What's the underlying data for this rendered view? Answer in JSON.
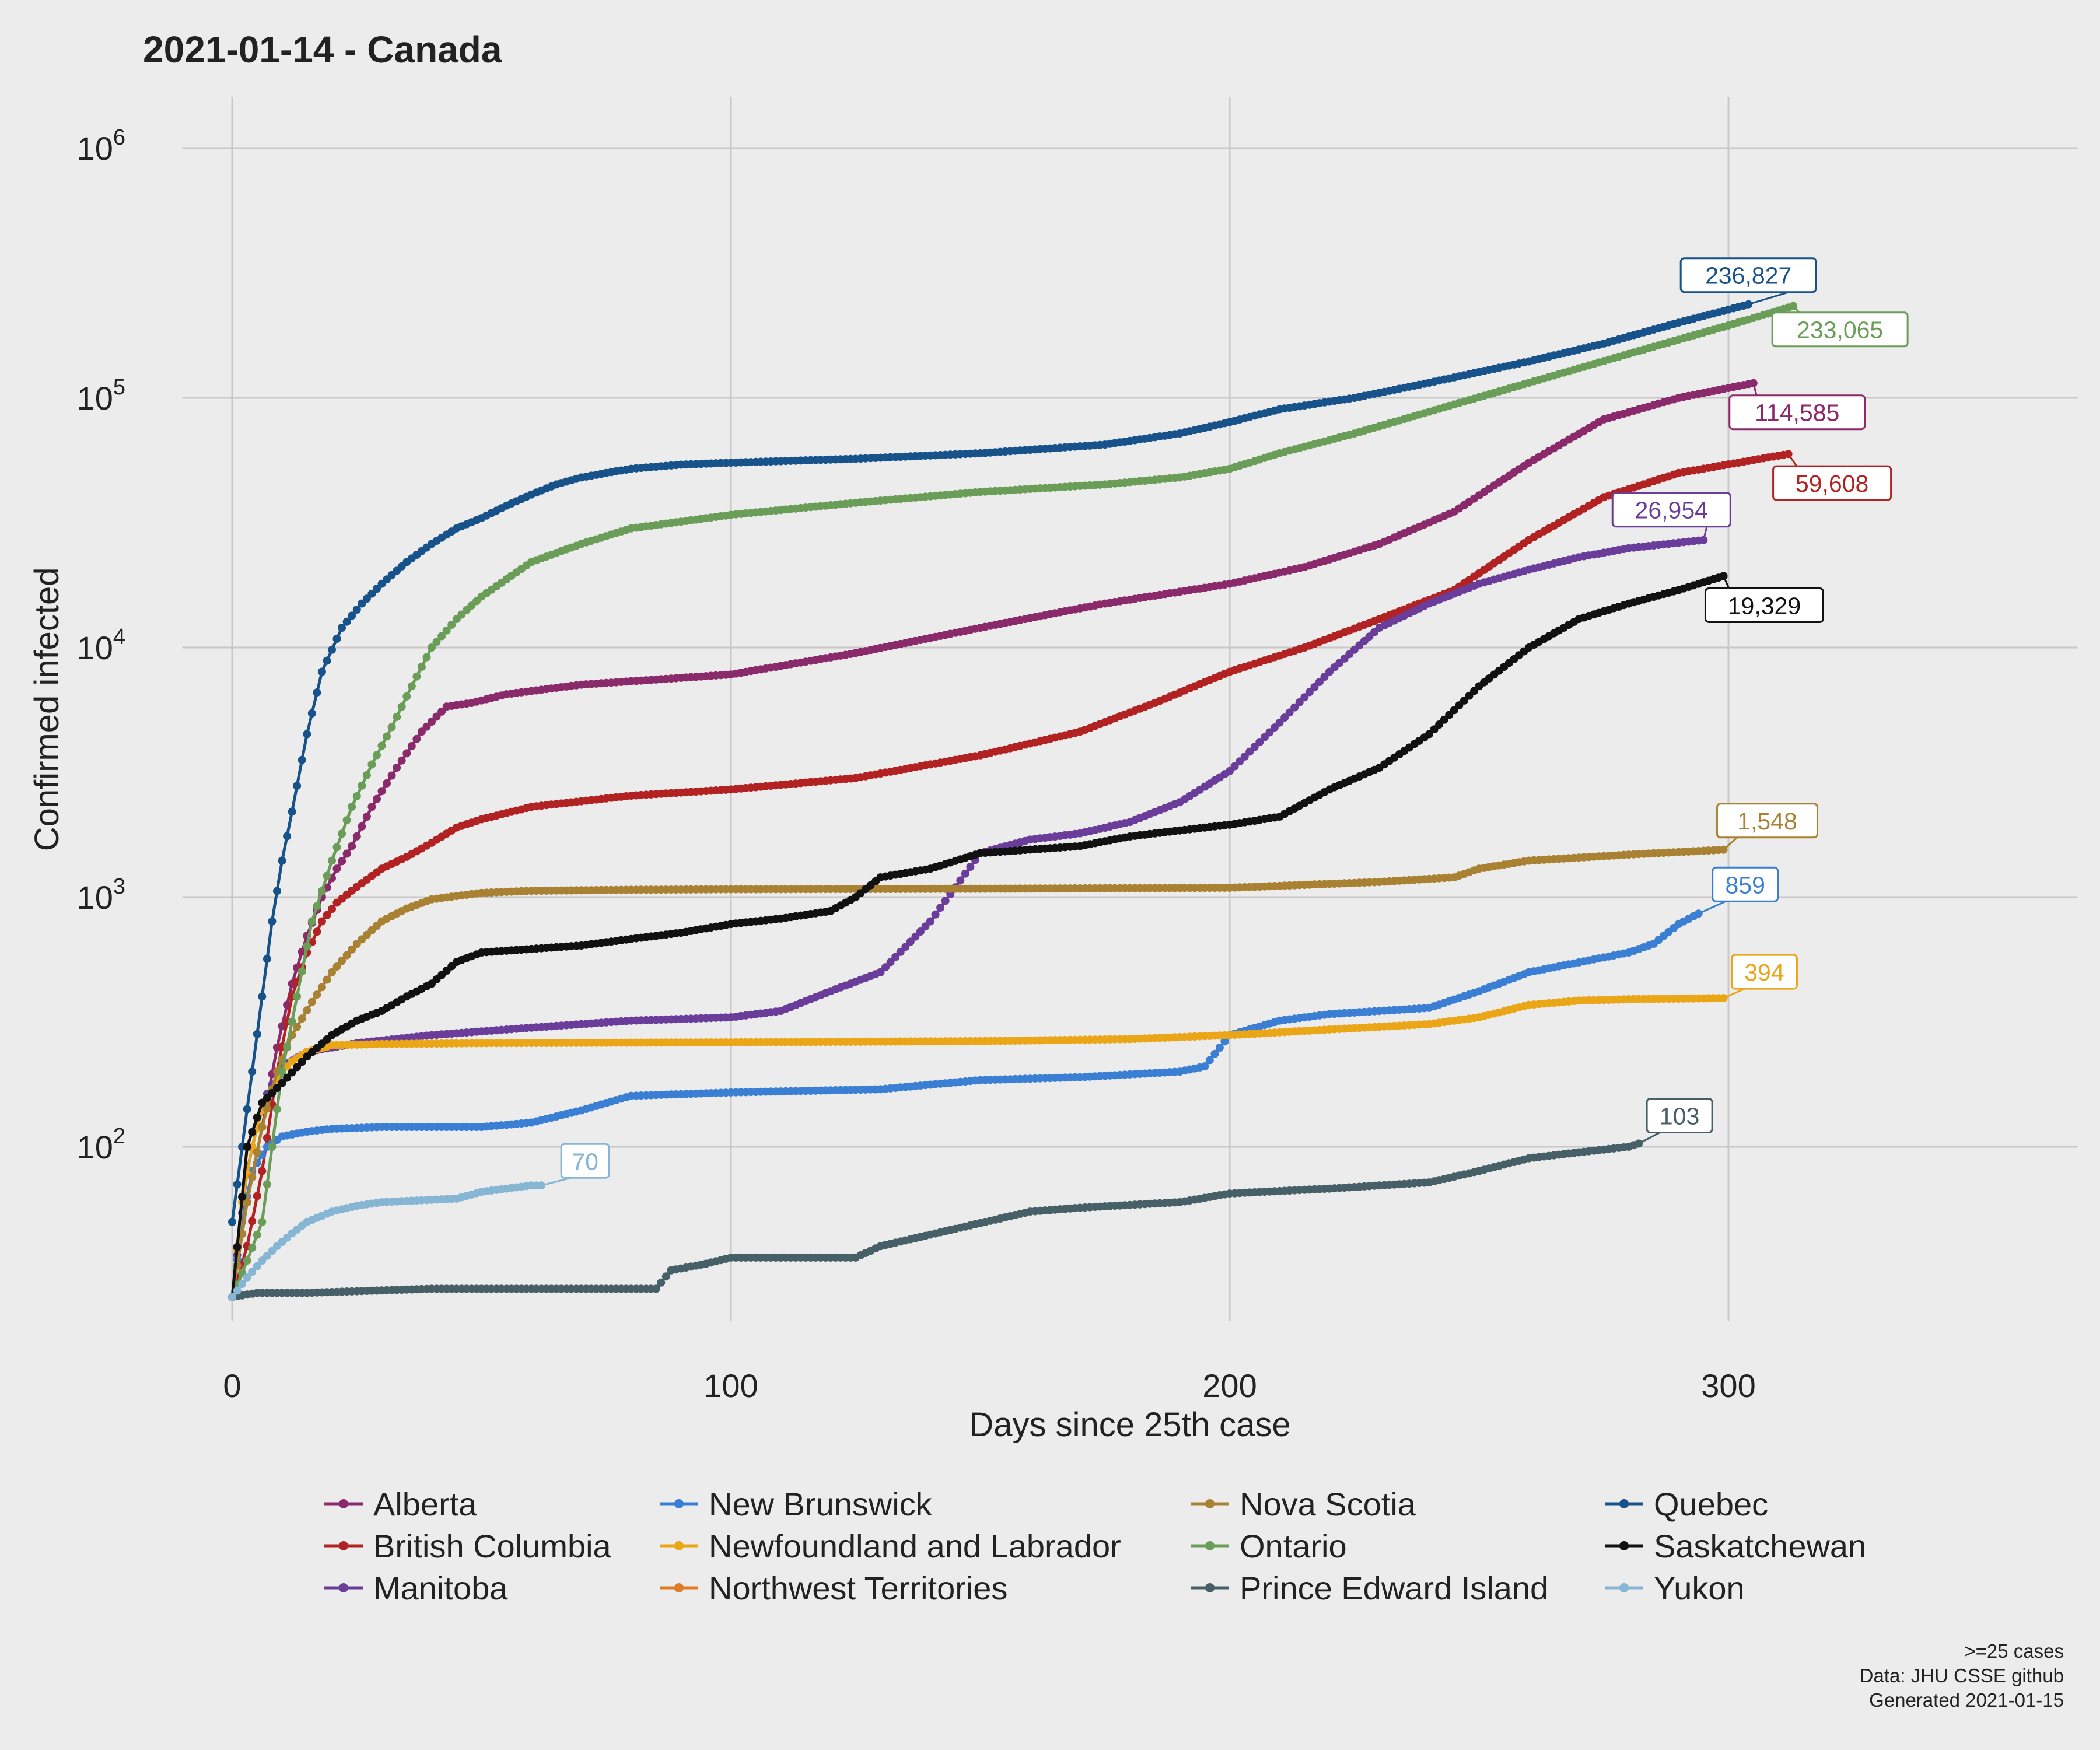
{
  "title": "2021-01-14  - Canada",
  "caption": [
    ">=25 cases",
    "Data: JHU CSSE github",
    "Generated 2021-01-15"
  ],
  "chart_data": {
    "type": "line",
    "title": "2021-01-14  - Canada",
    "xlabel": "Days since 25th case",
    "ylabel": "Confirmed infected",
    "y_scale": "log10",
    "xlim": [
      -10,
      370
    ],
    "ylim": [
      20,
      1600000
    ],
    "x_ticks": [
      0,
      100,
      200,
      300
    ],
    "x_tick_labels": [
      "0",
      "100",
      "200",
      "300"
    ],
    "y_ticks": [
      100,
      1000,
      10000,
      100000,
      1000000
    ],
    "y_tick_labels": [
      {
        "base": "10",
        "exp": "2"
      },
      {
        "base": "10",
        "exp": "3"
      },
      {
        "base": "10",
        "exp": "4"
      },
      {
        "base": "10",
        "exp": "5"
      },
      {
        "base": "10",
        "exp": "6"
      }
    ],
    "grid": true,
    "legend_position": "bottom",
    "series": [
      {
        "name": "Alberta",
        "color": "#8b2a6b",
        "end_label": "114,585",
        "x": [
          0,
          3,
          6,
          9,
          12,
          15,
          18,
          21,
          24,
          28,
          33,
          38,
          43,
          48,
          55,
          70,
          100,
          125,
          150,
          175,
          200,
          215,
          230,
          245,
          260,
          275,
          290,
          305
        ],
        "y": [
          25,
          60,
          120,
          250,
          450,
          700,
          1000,
          1300,
          1600,
          2300,
          3300,
          4600,
          5800,
          6000,
          6500,
          7100,
          7800,
          9500,
          12000,
          15000,
          18000,
          21000,
          26000,
          35000,
          55000,
          82000,
          100000,
          114585
        ]
      },
      {
        "name": "British Columbia",
        "color": "#b22222",
        "end_label": "59,608",
        "x": [
          0,
          3,
          6,
          9,
          12,
          15,
          18,
          21,
          25,
          30,
          35,
          40,
          45,
          50,
          60,
          80,
          100,
          125,
          150,
          170,
          185,
          200,
          215,
          230,
          245,
          260,
          275,
          290,
          312
        ],
        "y": [
          25,
          40,
          80,
          200,
          400,
          600,
          800,
          950,
          1100,
          1300,
          1450,
          1650,
          1900,
          2050,
          2300,
          2550,
          2700,
          3000,
          3700,
          4600,
          6000,
          8000,
          10000,
          13000,
          17000,
          27000,
          40000,
          50000,
          59608
        ]
      },
      {
        "name": "Manitoba",
        "color": "#6a3d9a",
        "end_label": "26,954",
        "x": [
          0,
          3,
          6,
          10,
          15,
          25,
          40,
          60,
          80,
          100,
          110,
          120,
          130,
          140,
          150,
          160,
          170,
          180,
          190,
          200,
          210,
          220,
          230,
          240,
          250,
          260,
          270,
          280,
          295
        ],
        "y": [
          25,
          80,
          150,
          210,
          240,
          260,
          280,
          300,
          320,
          330,
          350,
          420,
          500,
          800,
          1500,
          1700,
          1800,
          2000,
          2400,
          3200,
          5000,
          8000,
          12000,
          15000,
          18000,
          20500,
          23000,
          25000,
          26954
        ]
      },
      {
        "name": "New Brunswick",
        "color": "#3a7fd4",
        "end_label": "859",
        "x": [
          0,
          2,
          4,
          7,
          10,
          15,
          20,
          30,
          50,
          60,
          70,
          80,
          100,
          130,
          150,
          170,
          190,
          195,
          200,
          210,
          220,
          240,
          250,
          260,
          280,
          285,
          290,
          294
        ],
        "y": [
          25,
          50,
          80,
          100,
          110,
          115,
          118,
          120,
          120,
          125,
          140,
          160,
          165,
          170,
          185,
          190,
          200,
          210,
          280,
          320,
          340,
          360,
          420,
          500,
          600,
          650,
          780,
          859
        ]
      },
      {
        "name": "Newfoundland and Labrador",
        "color": "#eaa616",
        "end_label": "394",
        "x": [
          0,
          2,
          4,
          6,
          8,
          10,
          12,
          15,
          20,
          30,
          50,
          100,
          150,
          180,
          200,
          220,
          240,
          250,
          260,
          270,
          280,
          299
        ],
        "y": [
          25,
          60,
          100,
          140,
          170,
          200,
          220,
          240,
          255,
          258,
          260,
          262,
          265,
          270,
          280,
          295,
          310,
          330,
          370,
          385,
          390,
          394
        ]
      },
      {
        "name": "Northwest Territories",
        "color": "#e07b2a",
        "end_label": null,
        "x": [],
        "y": []
      },
      {
        "name": "Nova Scotia",
        "color": "#a88232",
        "end_label": "1,548",
        "x": [
          0,
          3,
          6,
          9,
          12,
          16,
          20,
          25,
          30,
          35,
          40,
          50,
          60,
          80,
          100,
          150,
          200,
          230,
          245,
          250,
          260,
          280,
          299
        ],
        "y": [
          25,
          60,
          120,
          200,
          280,
          380,
          500,
          650,
          800,
          900,
          980,
          1040,
          1060,
          1070,
          1075,
          1080,
          1090,
          1150,
          1200,
          1300,
          1400,
          1480,
          1548
        ]
      },
      {
        "name": "Ontario",
        "color": "#6a9e58",
        "end_label": "233,065",
        "x": [
          0,
          3,
          6,
          8,
          10,
          13,
          16,
          20,
          24,
          28,
          32,
          36,
          40,
          45,
          50,
          60,
          70,
          80,
          100,
          125,
          150,
          175,
          190,
          200,
          210,
          225,
          240,
          260,
          280,
          300,
          313
        ],
        "y": [
          25,
          35,
          50,
          100,
          200,
          400,
          800,
          1400,
          2300,
          3400,
          4800,
          7000,
          10000,
          13000,
          16000,
          22000,
          26000,
          30000,
          34000,
          38000,
          42000,
          45000,
          48000,
          52000,
          60000,
          72000,
          88000,
          115000,
          150000,
          195000,
          233065
        ]
      },
      {
        "name": "Prince Edward Island",
        "color": "#475f66",
        "end_label": "103",
        "x": [
          0,
          5,
          15,
          40,
          85,
          88,
          95,
          100,
          125,
          130,
          160,
          170,
          190,
          200,
          220,
          230,
          240,
          250,
          260,
          270,
          280,
          282
        ],
        "y": [
          25,
          26,
          26,
          27,
          27,
          32,
          34,
          36,
          36,
          40,
          55,
          57,
          60,
          65,
          68,
          70,
          72,
          80,
          90,
          95,
          100,
          103
        ]
      },
      {
        "name": "Quebec",
        "color": "#17538a",
        "end_label": "236,827",
        "x": [
          0,
          2,
          4,
          6,
          8,
          10,
          12,
          15,
          18,
          22,
          26,
          30,
          35,
          40,
          45,
          50,
          55,
          60,
          65,
          70,
          75,
          80,
          90,
          100,
          125,
          150,
          175,
          190,
          200,
          210,
          225,
          240,
          260,
          275,
          290,
          304
        ],
        "y": [
          50,
          100,
          200,
          400,
          800,
          1400,
          2200,
          4500,
          8000,
          12000,
          15000,
          18000,
          22000,
          26000,
          30000,
          33000,
          37000,
          41000,
          45000,
          48000,
          50000,
          52000,
          54000,
          55000,
          57000,
          60000,
          65000,
          72000,
          80000,
          90000,
          100000,
          115000,
          140000,
          165000,
          200000,
          236827
        ]
      },
      {
        "name": "Saskatchewan",
        "color": "#111111",
        "end_label": "19,329",
        "x": [
          0,
          3,
          6,
          10,
          15,
          20,
          25,
          30,
          35,
          40,
          45,
          50,
          60,
          70,
          80,
          90,
          100,
          110,
          120,
          125,
          130,
          140,
          150,
          160,
          170,
          180,
          190,
          200,
          210,
          220,
          230,
          240,
          250,
          260,
          270,
          280,
          290,
          299
        ],
        "y": [
          25,
          100,
          150,
          180,
          230,
          280,
          320,
          350,
          400,
          450,
          550,
          600,
          620,
          640,
          680,
          720,
          780,
          820,
          880,
          1000,
          1200,
          1300,
          1500,
          1550,
          1600,
          1750,
          1850,
          1950,
          2100,
          2700,
          3300,
          4500,
          7000,
          10000,
          13000,
          15000,
          17000,
          19329
        ]
      },
      {
        "name": "Yukon",
        "color": "#87b5d4",
        "end_label": "70",
        "x": [
          0,
          3,
          6,
          9,
          12,
          15,
          20,
          25,
          30,
          45,
          50,
          55,
          60,
          62
        ],
        "y": [
          25,
          30,
          35,
          40,
          45,
          50,
          55,
          58,
          60,
          62,
          66,
          68,
          70,
          70
        ]
      }
    ]
  }
}
